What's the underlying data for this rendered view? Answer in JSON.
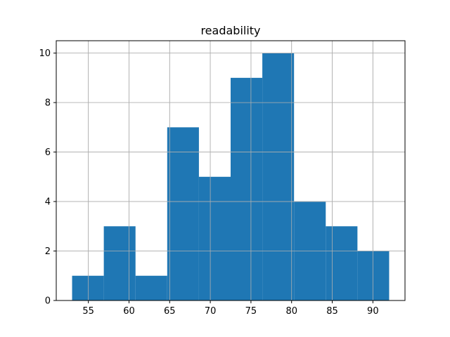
{
  "chart_data": {
    "type": "bar",
    "subtype": "histogram",
    "title": "readability",
    "xlabel": "",
    "ylabel": "",
    "bins": [
      {
        "x0": 53.0,
        "x1": 56.9,
        "count": 1
      },
      {
        "x0": 56.9,
        "x1": 60.8,
        "count": 3
      },
      {
        "x0": 60.8,
        "x1": 64.7,
        "count": 1
      },
      {
        "x0": 64.7,
        "x1": 68.6,
        "count": 7
      },
      {
        "x0": 68.6,
        "x1": 72.5,
        "count": 5
      },
      {
        "x0": 72.5,
        "x1": 76.4,
        "count": 9
      },
      {
        "x0": 76.4,
        "x1": 80.3,
        "count": 10
      },
      {
        "x0": 80.3,
        "x1": 84.2,
        "count": 4
      },
      {
        "x0": 84.2,
        "x1": 88.1,
        "count": 3
      },
      {
        "x0": 88.1,
        "x1": 92.0,
        "count": 2
      }
    ],
    "xlim": [
      51.05,
      93.95
    ],
    "ylim": [
      0,
      10.5
    ],
    "x_ticks": [
      55,
      60,
      65,
      70,
      75,
      80,
      85,
      90
    ],
    "y_ticks": [
      0,
      2,
      4,
      6,
      8,
      10
    ],
    "grid": true,
    "bar_color": "#1f77b4",
    "grid_color": "#b0b0b0"
  }
}
